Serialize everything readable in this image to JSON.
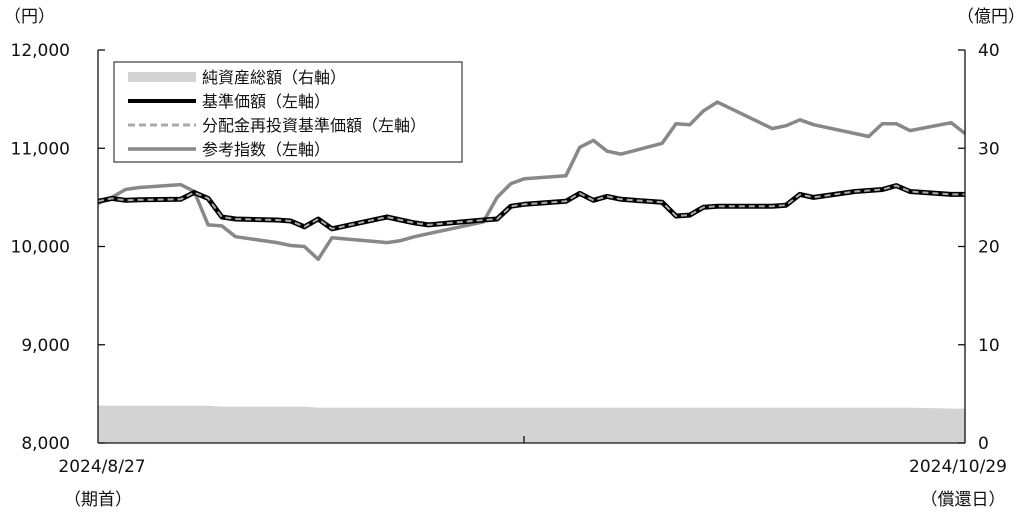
{
  "chart_data": {
    "type": "line",
    "left_axis": {
      "unit": "（円）",
      "ylim": [
        8000,
        12000
      ],
      "ticks": [
        8000,
        9000,
        10000,
        11000,
        12000
      ],
      "tick_labels": [
        "8,000",
        "9,000",
        "10,000",
        "11,000",
        "12,000"
      ]
    },
    "right_axis": {
      "unit": "（億円）",
      "ylim": [
        0,
        40
      ],
      "ticks": [
        0,
        10,
        20,
        30,
        40
      ],
      "tick_labels": [
        "0",
        "10",
        "20",
        "30",
        "40"
      ]
    },
    "x_axis": {
      "start_label": "2024/8/27",
      "start_sublabel": "（期首）",
      "end_label": "2024/10/29",
      "end_sublabel": "（償還日）"
    },
    "x": [
      "2024-08-27",
      "2024-08-28",
      "2024-08-29",
      "2024-08-30",
      "2024-09-02",
      "2024-09-03",
      "2024-09-04",
      "2024-09-05",
      "2024-09-06",
      "2024-09-09",
      "2024-09-10",
      "2024-09-11",
      "2024-09-12",
      "2024-09-13",
      "2024-09-17",
      "2024-09-18",
      "2024-09-19",
      "2024-09-20",
      "2024-09-24",
      "2024-09-25",
      "2024-09-26",
      "2024-09-27",
      "2024-09-30",
      "2024-10-01",
      "2024-10-02",
      "2024-10-03",
      "2024-10-04",
      "2024-10-07",
      "2024-10-08",
      "2024-10-09",
      "2024-10-10",
      "2024-10-11",
      "2024-10-15",
      "2024-10-16",
      "2024-10-17",
      "2024-10-18",
      "2024-10-21",
      "2024-10-22",
      "2024-10-23",
      "2024-10-24",
      "2024-10-25",
      "2024-10-28",
      "2024-10-29"
    ],
    "series": [
      {
        "name": "純資産総額（右軸）",
        "axis": "right",
        "type": "area",
        "color": "#d3d3d3",
        "values": [
          3.8,
          3.8,
          3.8,
          3.8,
          3.8,
          3.8,
          3.8,
          3.7,
          3.7,
          3.7,
          3.7,
          3.7,
          3.6,
          3.6,
          3.6,
          3.6,
          3.6,
          3.6,
          3.6,
          3.6,
          3.6,
          3.6,
          3.6,
          3.6,
          3.6,
          3.6,
          3.6,
          3.6,
          3.6,
          3.6,
          3.6,
          3.6,
          3.6,
          3.6,
          3.6,
          3.6,
          3.6,
          3.6,
          3.6,
          3.6,
          3.6,
          3.5,
          3.5
        ]
      },
      {
        "name": "基準価額（左軸）",
        "axis": "left",
        "type": "line",
        "color": "#000000",
        "values": [
          10460,
          10490,
          10470,
          10475,
          10480,
          10550,
          10490,
          10300,
          10280,
          10270,
          10260,
          10200,
          10280,
          10180,
          10300,
          10270,
          10240,
          10220,
          10270,
          10280,
          10410,
          10430,
          10460,
          10540,
          10470,
          10510,
          10480,
          10450,
          10310,
          10320,
          10400,
          10410,
          10410,
          10420,
          10530,
          10500,
          10560,
          10570,
          10580,
          10620,
          10560,
          10530,
          10530
        ]
      },
      {
        "name": "分配金再投資基準価額（左軸）",
        "axis": "left",
        "type": "line",
        "color": "#aaaaaa",
        "dashed": true,
        "values": [
          10460,
          10490,
          10470,
          10475,
          10480,
          10550,
          10490,
          10300,
          10280,
          10270,
          10260,
          10200,
          10280,
          10180,
          10300,
          10270,
          10240,
          10220,
          10270,
          10280,
          10410,
          10430,
          10460,
          10540,
          10470,
          10510,
          10480,
          10450,
          10310,
          10320,
          10400,
          10410,
          10410,
          10420,
          10530,
          10500,
          10560,
          10570,
          10580,
          10620,
          10560,
          10530,
          10530
        ]
      },
      {
        "name": "参考指数（左軸）",
        "axis": "left",
        "type": "line",
        "color": "#888888",
        "values": [
          10440,
          10500,
          10580,
          10600,
          10630,
          10560,
          10220,
          10210,
          10100,
          10040,
          10010,
          10000,
          9870,
          10090,
          10040,
          10060,
          10100,
          10130,
          10250,
          10500,
          10640,
          10690,
          10720,
          11010,
          11080,
          10970,
          10940,
          11050,
          11250,
          11240,
          11380,
          11470,
          11200,
          11230,
          11290,
          11240,
          11150,
          11120,
          11250,
          11250,
          11180,
          11260,
          11150
        ]
      }
    ],
    "legend_position": "top-left"
  }
}
